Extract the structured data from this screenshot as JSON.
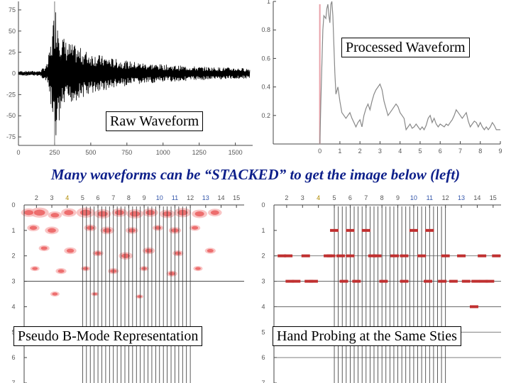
{
  "caption": "Many waveforms can be “STACKED” to get the image below (left)",
  "labels": {
    "raw": "Raw Waveform",
    "processed": "Processed Waveform",
    "bmode": "Pseudo B-Mode Representation",
    "hand": "Hand Probing at the Same Sties"
  },
  "colors": {
    "raw_line": "#000000",
    "processed_line": "#888888",
    "processed_marker": "#e8a0a8",
    "stack_fill": "#e84a4a",
    "probe_mark": "#c03030",
    "caption_text": "#0d1f8a"
  },
  "chart_data": [
    {
      "id": "raw",
      "type": "line",
      "x_ticks": [
        "0",
        "250",
        "500",
        "750",
        "1000",
        "1250",
        "1500"
      ],
      "y_ticks": [
        "75",
        "50",
        "25",
        "0",
        "-25",
        "-50",
        "-75"
      ],
      "xlim": [
        0,
        1600
      ],
      "ylim": [
        -85,
        85
      ],
      "marker_x": 250,
      "envelope": [
        [
          0,
          3
        ],
        [
          150,
          3
        ],
        [
          200,
          12
        ],
        [
          230,
          45
        ],
        [
          250,
          80
        ],
        [
          265,
          82
        ],
        [
          290,
          55
        ],
        [
          320,
          40
        ],
        [
          380,
          34
        ],
        [
          430,
          30
        ],
        [
          480,
          26
        ],
        [
          560,
          22
        ],
        [
          650,
          18
        ],
        [
          750,
          15
        ],
        [
          900,
          12
        ],
        [
          1050,
          10
        ],
        [
          1250,
          8
        ],
        [
          1450,
          7
        ],
        [
          1600,
          6
        ]
      ]
    },
    {
      "id": "processed",
      "type": "line",
      "x_ticks": [
        "0",
        "1",
        "2",
        "3",
        "4",
        "5",
        "6",
        "7",
        "8",
        "9"
      ],
      "y_ticks": [
        "1",
        "0.8",
        "0.6",
        "0.4",
        "0.2"
      ],
      "xlim": [
        -0.2,
        9
      ],
      "ylim": [
        0,
        1
      ],
      "marker_x": 0,
      "points": [
        [
          0,
          0
        ],
        [
          0.05,
          0.3
        ],
        [
          0.1,
          0.55
        ],
        [
          0.15,
          0.8
        ],
        [
          0.2,
          0.9
        ],
        [
          0.3,
          0.88
        ],
        [
          0.35,
          0.95
        ],
        [
          0.4,
          0.98
        ],
        [
          0.45,
          0.9
        ],
        [
          0.5,
          0.85
        ],
        [
          0.55,
          0.98
        ],
        [
          0.6,
          1.0
        ],
        [
          0.65,
          0.9
        ],
        [
          0.7,
          0.7
        ],
        [
          0.75,
          0.5
        ],
        [
          0.8,
          0.35
        ],
        [
          0.9,
          0.4
        ],
        [
          1.0,
          0.3
        ],
        [
          1.1,
          0.22
        ],
        [
          1.2,
          0.2
        ],
        [
          1.3,
          0.18
        ],
        [
          1.4,
          0.2
        ],
        [
          1.5,
          0.22
        ],
        [
          1.6,
          0.18
        ],
        [
          1.7,
          0.15
        ],
        [
          1.8,
          0.12
        ],
        [
          1.9,
          0.15
        ],
        [
          2.0,
          0.17
        ],
        [
          2.1,
          0.12
        ],
        [
          2.2,
          0.2
        ],
        [
          2.3,
          0.25
        ],
        [
          2.4,
          0.28
        ],
        [
          2.5,
          0.24
        ],
        [
          2.6,
          0.3
        ],
        [
          2.7,
          0.35
        ],
        [
          2.8,
          0.38
        ],
        [
          2.9,
          0.4
        ],
        [
          3.0,
          0.42
        ],
        [
          3.1,
          0.38
        ],
        [
          3.2,
          0.3
        ],
        [
          3.3,
          0.25
        ],
        [
          3.4,
          0.2
        ],
        [
          3.5,
          0.22
        ],
        [
          3.6,
          0.24
        ],
        [
          3.7,
          0.26
        ],
        [
          3.8,
          0.28
        ],
        [
          3.9,
          0.26
        ],
        [
          4.0,
          0.22
        ],
        [
          4.1,
          0.2
        ],
        [
          4.2,
          0.18
        ],
        [
          4.3,
          0.1
        ],
        [
          4.4,
          0.12
        ],
        [
          4.5,
          0.14
        ],
        [
          4.6,
          0.11
        ],
        [
          4.7,
          0.12
        ],
        [
          4.8,
          0.14
        ],
        [
          4.9,
          0.12
        ],
        [
          5.0,
          0.1
        ],
        [
          5.1,
          0.12
        ],
        [
          5.2,
          0.1
        ],
        [
          5.3,
          0.13
        ],
        [
          5.4,
          0.18
        ],
        [
          5.5,
          0.2
        ],
        [
          5.6,
          0.15
        ],
        [
          5.7,
          0.18
        ],
        [
          5.8,
          0.14
        ],
        [
          5.9,
          0.12
        ],
        [
          6.0,
          0.14
        ],
        [
          6.1,
          0.13
        ],
        [
          6.2,
          0.12
        ],
        [
          6.3,
          0.14
        ],
        [
          6.4,
          0.13
        ],
        [
          6.5,
          0.15
        ],
        [
          6.6,
          0.17
        ],
        [
          6.7,
          0.2
        ],
        [
          6.8,
          0.24
        ],
        [
          6.9,
          0.22
        ],
        [
          7.0,
          0.2
        ],
        [
          7.1,
          0.18
        ],
        [
          7.2,
          0.2
        ],
        [
          7.3,
          0.22
        ],
        [
          7.4,
          0.16
        ],
        [
          7.5,
          0.12
        ],
        [
          7.6,
          0.14
        ],
        [
          7.7,
          0.16
        ],
        [
          7.8,
          0.15
        ],
        [
          7.9,
          0.12
        ],
        [
          8.0,
          0.15
        ],
        [
          8.1,
          0.12
        ],
        [
          8.2,
          0.1
        ],
        [
          8.3,
          0.12
        ],
        [
          8.4,
          0.1
        ],
        [
          8.5,
          0.12
        ],
        [
          8.6,
          0.15
        ],
        [
          8.7,
          0.13
        ],
        [
          8.8,
          0.1
        ],
        [
          9.0,
          0.1
        ]
      ]
    },
    {
      "id": "bmode",
      "type": "heatmap",
      "x_ticks": [
        "2",
        "3",
        "4",
        "5",
        "6",
        "7",
        "8",
        "9",
        "10",
        "11",
        "12",
        "13",
        "14",
        "15"
      ],
      "y_ticks": [
        "0",
        "1",
        "2",
        "3",
        "4",
        "5",
        "6",
        "7"
      ],
      "xlim": [
        1.2,
        15.5
      ],
      "ylim": [
        0,
        7
      ],
      "depth_line": 3,
      "blobs": [
        [
          1.5,
          0.3,
          0.5
        ],
        [
          2.2,
          0.3,
          0.6
        ],
        [
          3.2,
          0.4,
          0.45
        ],
        [
          4.1,
          0.3,
          0.5
        ],
        [
          5.2,
          0.3,
          0.6
        ],
        [
          6.3,
          0.35,
          0.55
        ],
        [
          7.4,
          0.3,
          0.5
        ],
        [
          8.4,
          0.35,
          0.55
        ],
        [
          9.4,
          0.3,
          0.5
        ],
        [
          10.5,
          0.35,
          0.5
        ],
        [
          11.5,
          0.3,
          0.55
        ],
        [
          12.6,
          0.35,
          0.5
        ],
        [
          13.6,
          0.3,
          0.45
        ],
        [
          1.8,
          0.9,
          0.4
        ],
        [
          3.0,
          1.0,
          0.45
        ],
        [
          5.5,
          0.9,
          0.4
        ],
        [
          6.6,
          1.0,
          0.45
        ],
        [
          8.2,
          1.0,
          0.4
        ],
        [
          9.9,
          0.9,
          0.35
        ],
        [
          11.0,
          1.0,
          0.4
        ],
        [
          12.3,
          0.9,
          0.35
        ],
        [
          2.5,
          1.7,
          0.35
        ],
        [
          4.2,
          1.8,
          0.4
        ],
        [
          6.0,
          1.9,
          0.35
        ],
        [
          7.8,
          2.0,
          0.45
        ],
        [
          9.3,
          1.8,
          0.4
        ],
        [
          11.2,
          1.9,
          0.35
        ],
        [
          13.3,
          1.8,
          0.35
        ],
        [
          1.9,
          2.5,
          0.3
        ],
        [
          3.6,
          2.6,
          0.35
        ],
        [
          5.2,
          2.5,
          0.3
        ],
        [
          7.0,
          2.6,
          0.35
        ],
        [
          9.0,
          2.5,
          0.3
        ],
        [
          10.8,
          2.7,
          0.35
        ],
        [
          12.5,
          2.5,
          0.3
        ],
        [
          3.2,
          3.5,
          0.3
        ],
        [
          5.8,
          3.5,
          0.25
        ],
        [
          8.7,
          3.6,
          0.25
        ]
      ]
    },
    {
      "id": "hand",
      "type": "scatter",
      "x_ticks": [
        "2",
        "3",
        "4",
        "5",
        "6",
        "7",
        "8",
        "9",
        "10",
        "11",
        "12",
        "13",
        "14",
        "15"
      ],
      "y_ticks": [
        "0",
        "1",
        "2",
        "3",
        "4",
        "5",
        "6",
        "7"
      ],
      "xlim": [
        1.2,
        15.5
      ],
      "ylim": [
        0,
        7
      ],
      "depth_lines": [
        2,
        3,
        4,
        5,
        6
      ],
      "marks": [
        [
          5.0,
          1
        ],
        [
          6.0,
          1
        ],
        [
          7.0,
          1
        ],
        [
          10.0,
          1
        ],
        [
          11.0,
          1
        ],
        [
          1.7,
          2
        ],
        [
          2.1,
          2
        ],
        [
          3.2,
          2
        ],
        [
          4.6,
          2
        ],
        [
          4.8,
          2
        ],
        [
          5.4,
          2
        ],
        [
          6.0,
          2
        ],
        [
          7.4,
          2
        ],
        [
          7.7,
          2
        ],
        [
          8.8,
          2
        ],
        [
          9.4,
          2
        ],
        [
          10.5,
          2
        ],
        [
          12.0,
          2
        ],
        [
          13.0,
          2
        ],
        [
          14.3,
          2
        ],
        [
          15.2,
          2
        ],
        [
          2.2,
          3
        ],
        [
          2.6,
          3
        ],
        [
          3.4,
          3
        ],
        [
          3.7,
          3
        ],
        [
          5.6,
          3
        ],
        [
          6.4,
          3
        ],
        [
          8.1,
          3
        ],
        [
          9.4,
          3
        ],
        [
          10.9,
          3
        ],
        [
          11.8,
          3
        ],
        [
          12.5,
          3
        ],
        [
          13.3,
          3
        ],
        [
          13.9,
          3
        ],
        [
          14.4,
          3
        ],
        [
          14.8,
          3
        ],
        [
          13.8,
          4
        ]
      ]
    }
  ]
}
